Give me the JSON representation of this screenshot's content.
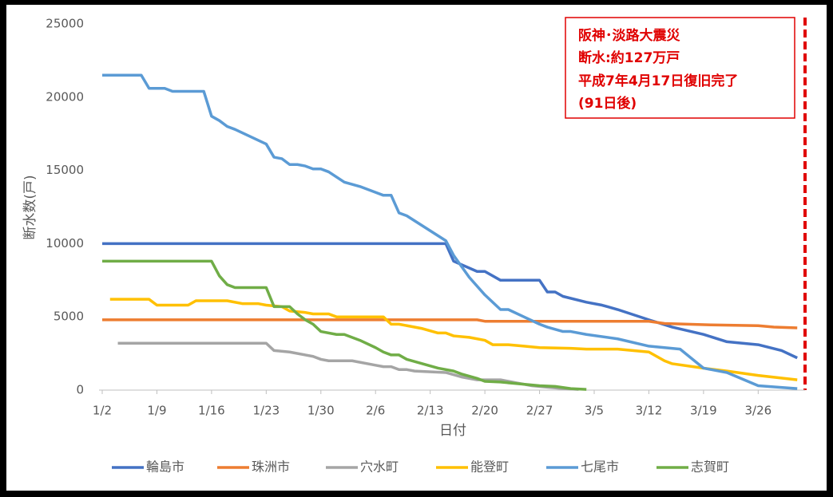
{
  "chart_data": {
    "type": "line",
    "xlabel": "日付",
    "ylabel": "断水数(戸)",
    "xlim": [
      0,
      90
    ],
    "ylim": [
      0,
      25000
    ],
    "xticks": [
      {
        "value": 0,
        "label": "1/2"
      },
      {
        "value": 7,
        "label": "1/9"
      },
      {
        "value": 14,
        "label": "1/16"
      },
      {
        "value": 21,
        "label": "1/23"
      },
      {
        "value": 28,
        "label": "1/30"
      },
      {
        "value": 35,
        "label": "2/6"
      },
      {
        "value": 42,
        "label": "2/13"
      },
      {
        "value": 49,
        "label": "2/20"
      },
      {
        "value": 56,
        "label": "2/27"
      },
      {
        "value": 63,
        "label": "3/5"
      },
      {
        "value": 70,
        "label": "3/12"
      },
      {
        "value": 77,
        "label": "3/19"
      },
      {
        "value": 84,
        "label": "3/26"
      }
    ],
    "yticks": [
      0,
      5000,
      10000,
      15000,
      20000,
      25000
    ],
    "grid": false,
    "legend": "bottom",
    "annotation": [
      "阪神･淡路大震災",
      "断水:約127万戸",
      "平成7年4月17日復旧完了",
      "(91日後)"
    ],
    "series": [
      {
        "name": "輪島市",
        "color": "#4472c4",
        "x": [
          0,
          44,
          45,
          48,
          49,
          51,
          56,
          57,
          58,
          59,
          62,
          64,
          66,
          70,
          73,
          77,
          80,
          84,
          87,
          89
        ],
        "values": [
          10000,
          10000,
          8800,
          8100,
          8100,
          7500,
          7500,
          6700,
          6700,
          6400,
          6000,
          5800,
          5500,
          4800,
          4300,
          3800,
          3300,
          3100,
          2700,
          2200
        ]
      },
      {
        "name": "珠洲市",
        "color": "#ed7d31",
        "x": [
          0,
          48,
          49,
          70,
          72,
          78,
          84,
          86,
          89
        ],
        "values": [
          4800,
          4800,
          4700,
          4700,
          4550,
          4450,
          4400,
          4300,
          4250
        ]
      },
      {
        "name": "穴水町",
        "color": "#a5a5a5",
        "x": [
          2,
          21,
          22,
          24,
          26,
          27,
          28,
          29,
          32,
          35,
          36,
          37,
          38,
          39,
          40,
          44,
          46,
          48,
          51,
          53,
          55,
          57,
          59,
          61
        ],
        "values": [
          3200,
          3200,
          2700,
          2600,
          2400,
          2300,
          2100,
          2000,
          2000,
          1700,
          1600,
          1600,
          1400,
          1400,
          1300,
          1200,
          900,
          700,
          700,
          500,
          300,
          200,
          100,
          50
        ]
      },
      {
        "name": "能登町",
        "color": "#ffc000",
        "x": [
          1,
          6,
          7,
          11,
          12,
          16,
          18,
          20,
          21,
          23,
          24,
          26,
          27,
          29,
          30,
          36,
          37,
          38,
          41,
          43,
          44,
          45,
          47,
          49,
          50,
          52,
          54,
          56,
          60,
          62,
          66,
          70,
          72,
          73,
          77,
          80,
          84,
          89
        ],
        "values": [
          6200,
          6200,
          5800,
          5800,
          6100,
          6100,
          5900,
          5900,
          5800,
          5700,
          5400,
          5300,
          5200,
          5200,
          5000,
          5000,
          4500,
          4500,
          4200,
          3900,
          3900,
          3700,
          3600,
          3400,
          3100,
          3100,
          3000,
          2900,
          2850,
          2800,
          2800,
          2600,
          2000,
          1800,
          1500,
          1300,
          1000,
          700
        ]
      },
      {
        "name": "七尾市",
        "color": "#5b9bd5",
        "x": [
          0,
          5,
          6,
          8,
          9,
          13,
          14,
          15,
          16,
          17,
          21,
          22,
          23,
          24,
          25,
          26,
          27,
          28,
          29,
          31,
          33,
          35,
          36,
          37,
          38,
          39,
          44,
          45,
          47,
          49,
          51,
          52,
          54,
          56,
          57,
          59,
          60,
          62,
          66,
          70,
          72,
          74,
          77,
          80,
          84,
          89
        ],
        "values": [
          21500,
          21500,
          20600,
          20600,
          20400,
          20400,
          18700,
          18400,
          18000,
          17800,
          16800,
          15900,
          15800,
          15400,
          15400,
          15300,
          15100,
          15100,
          14900,
          14200,
          13900,
          13500,
          13300,
          13300,
          12100,
          11900,
          10200,
          9200,
          7700,
          6500,
          5500,
          5500,
          5000,
          4500,
          4300,
          4000,
          4000,
          3800,
          3500,
          3000,
          2900,
          2800,
          1500,
          1200,
          300,
          100
        ]
      },
      {
        "name": "志賀町",
        "color": "#70ad47",
        "x": [
          0,
          14,
          15,
          16,
          17,
          21,
          22,
          24,
          25,
          26,
          27,
          28,
          30,
          31,
          33,
          35,
          36,
          37,
          38,
          39,
          41,
          43,
          45,
          46,
          48,
          49,
          51,
          53,
          56,
          58,
          60,
          62
        ],
        "values": [
          8800,
          8800,
          7800,
          7200,
          7000,
          7000,
          5700,
          5700,
          5200,
          4800,
          4500,
          4000,
          3800,
          3800,
          3400,
          2900,
          2600,
          2400,
          2400,
          2100,
          1800,
          1500,
          1300,
          1100,
          800,
          600,
          550,
          450,
          300,
          250,
          100,
          50
        ]
      }
    ]
  }
}
